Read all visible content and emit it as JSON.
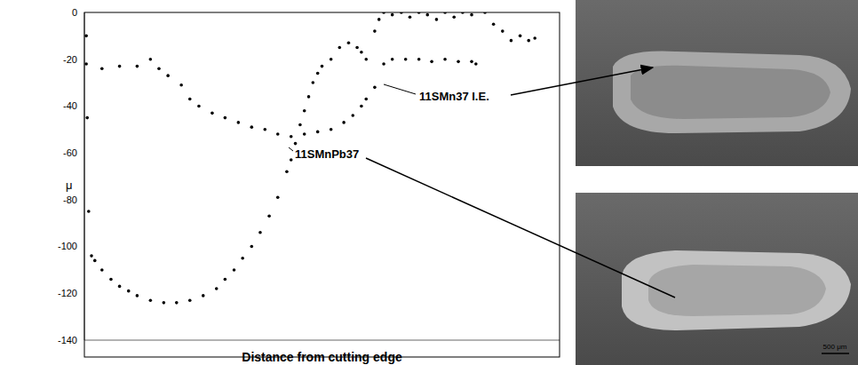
{
  "chart_data": {
    "type": "scatter",
    "x_label": "Distance from cutting edge",
    "y_label": "μ",
    "xlim": [
      0,
      100
    ],
    "ylim": [
      -140,
      0
    ],
    "yticks": [
      -140,
      -120,
      -100,
      -80,
      -60,
      -40,
      -20,
      0
    ],
    "tick_labels": "y",
    "grid": false,
    "series": [
      {
        "name": "11SMn37 I.E.",
        "color": "#000000",
        "marker": "circle",
        "x": [
          0.4,
          3.7,
          7.4,
          11.1,
          13.9,
          15.7,
          17.6,
          20.4,
          22.2,
          24.1,
          26.9,
          29.6,
          32.4,
          35.2,
          38,
          40.7,
          43.5,
          46.3,
          49.1,
          51.9,
          54.6,
          56.5,
          58.3,
          59.3,
          61.1,
          63,
          64.8,
          67.6,
          70.4,
          73.1,
          75.9,
          78.7,
          81.5,
          82.4
        ],
        "values": [
          -22,
          -24,
          -23,
          -23,
          -20,
          -24,
          -27,
          -31,
          -37,
          -40,
          -43,
          -45,
          -47,
          -49,
          -50,
          -52,
          -53,
          -52,
          -51,
          -50,
          -47,
          -44,
          -40,
          -37,
          -32,
          -22,
          -20,
          -20,
          -20,
          -21,
          -20,
          -21,
          -21,
          -22
        ]
      },
      {
        "name": "11SMnPb37",
        "color": "#000000",
        "marker": "circle",
        "x": [
          0.4,
          0.6,
          0.9,
          1.5,
          2.2,
          3.7,
          5.6,
          7.4,
          9.3,
          11.1,
          13.9,
          16.7,
          19.4,
          22.2,
          25,
          27.8,
          29.6,
          31.5,
          33.3,
          35.2,
          37,
          38.9,
          40.7,
          42.6,
          43.5,
          44.4,
          45.4,
          46.3,
          47.2,
          48.1,
          49.1,
          50,
          51.9,
          53.7,
          55.6,
          57.4,
          58.3,
          59.3,
          61.1,
          62,
          63,
          64.8,
          66.7,
          68.5,
          70.4,
          72.2,
          74.1,
          75.9,
          77.8,
          79.6,
          81.5,
          84.3,
          86.1,
          88,
          89.8,
          91.7,
          93.5,
          94.8
        ],
        "values": [
          -10,
          -45,
          -85,
          -104,
          -106,
          -110,
          -114,
          -117,
          -119,
          -121,
          -123,
          -124,
          -124,
          -123,
          -121,
          -118,
          -114,
          -110,
          -105,
          -100,
          -94,
          -87,
          -79,
          -68,
          -63,
          -56,
          -48,
          -42,
          -36,
          -30,
          -26,
          -23,
          -20,
          -15,
          -13,
          -15,
          -17,
          -20,
          -8,
          -3,
          0,
          -1,
          0,
          -2,
          0,
          -1,
          -3,
          0,
          -2,
          0,
          -1,
          0,
          -5,
          -8,
          -12,
          -10,
          -12,
          -11
        ]
      }
    ],
    "annotations": [
      {
        "text": "500 μm"
      }
    ]
  }
}
